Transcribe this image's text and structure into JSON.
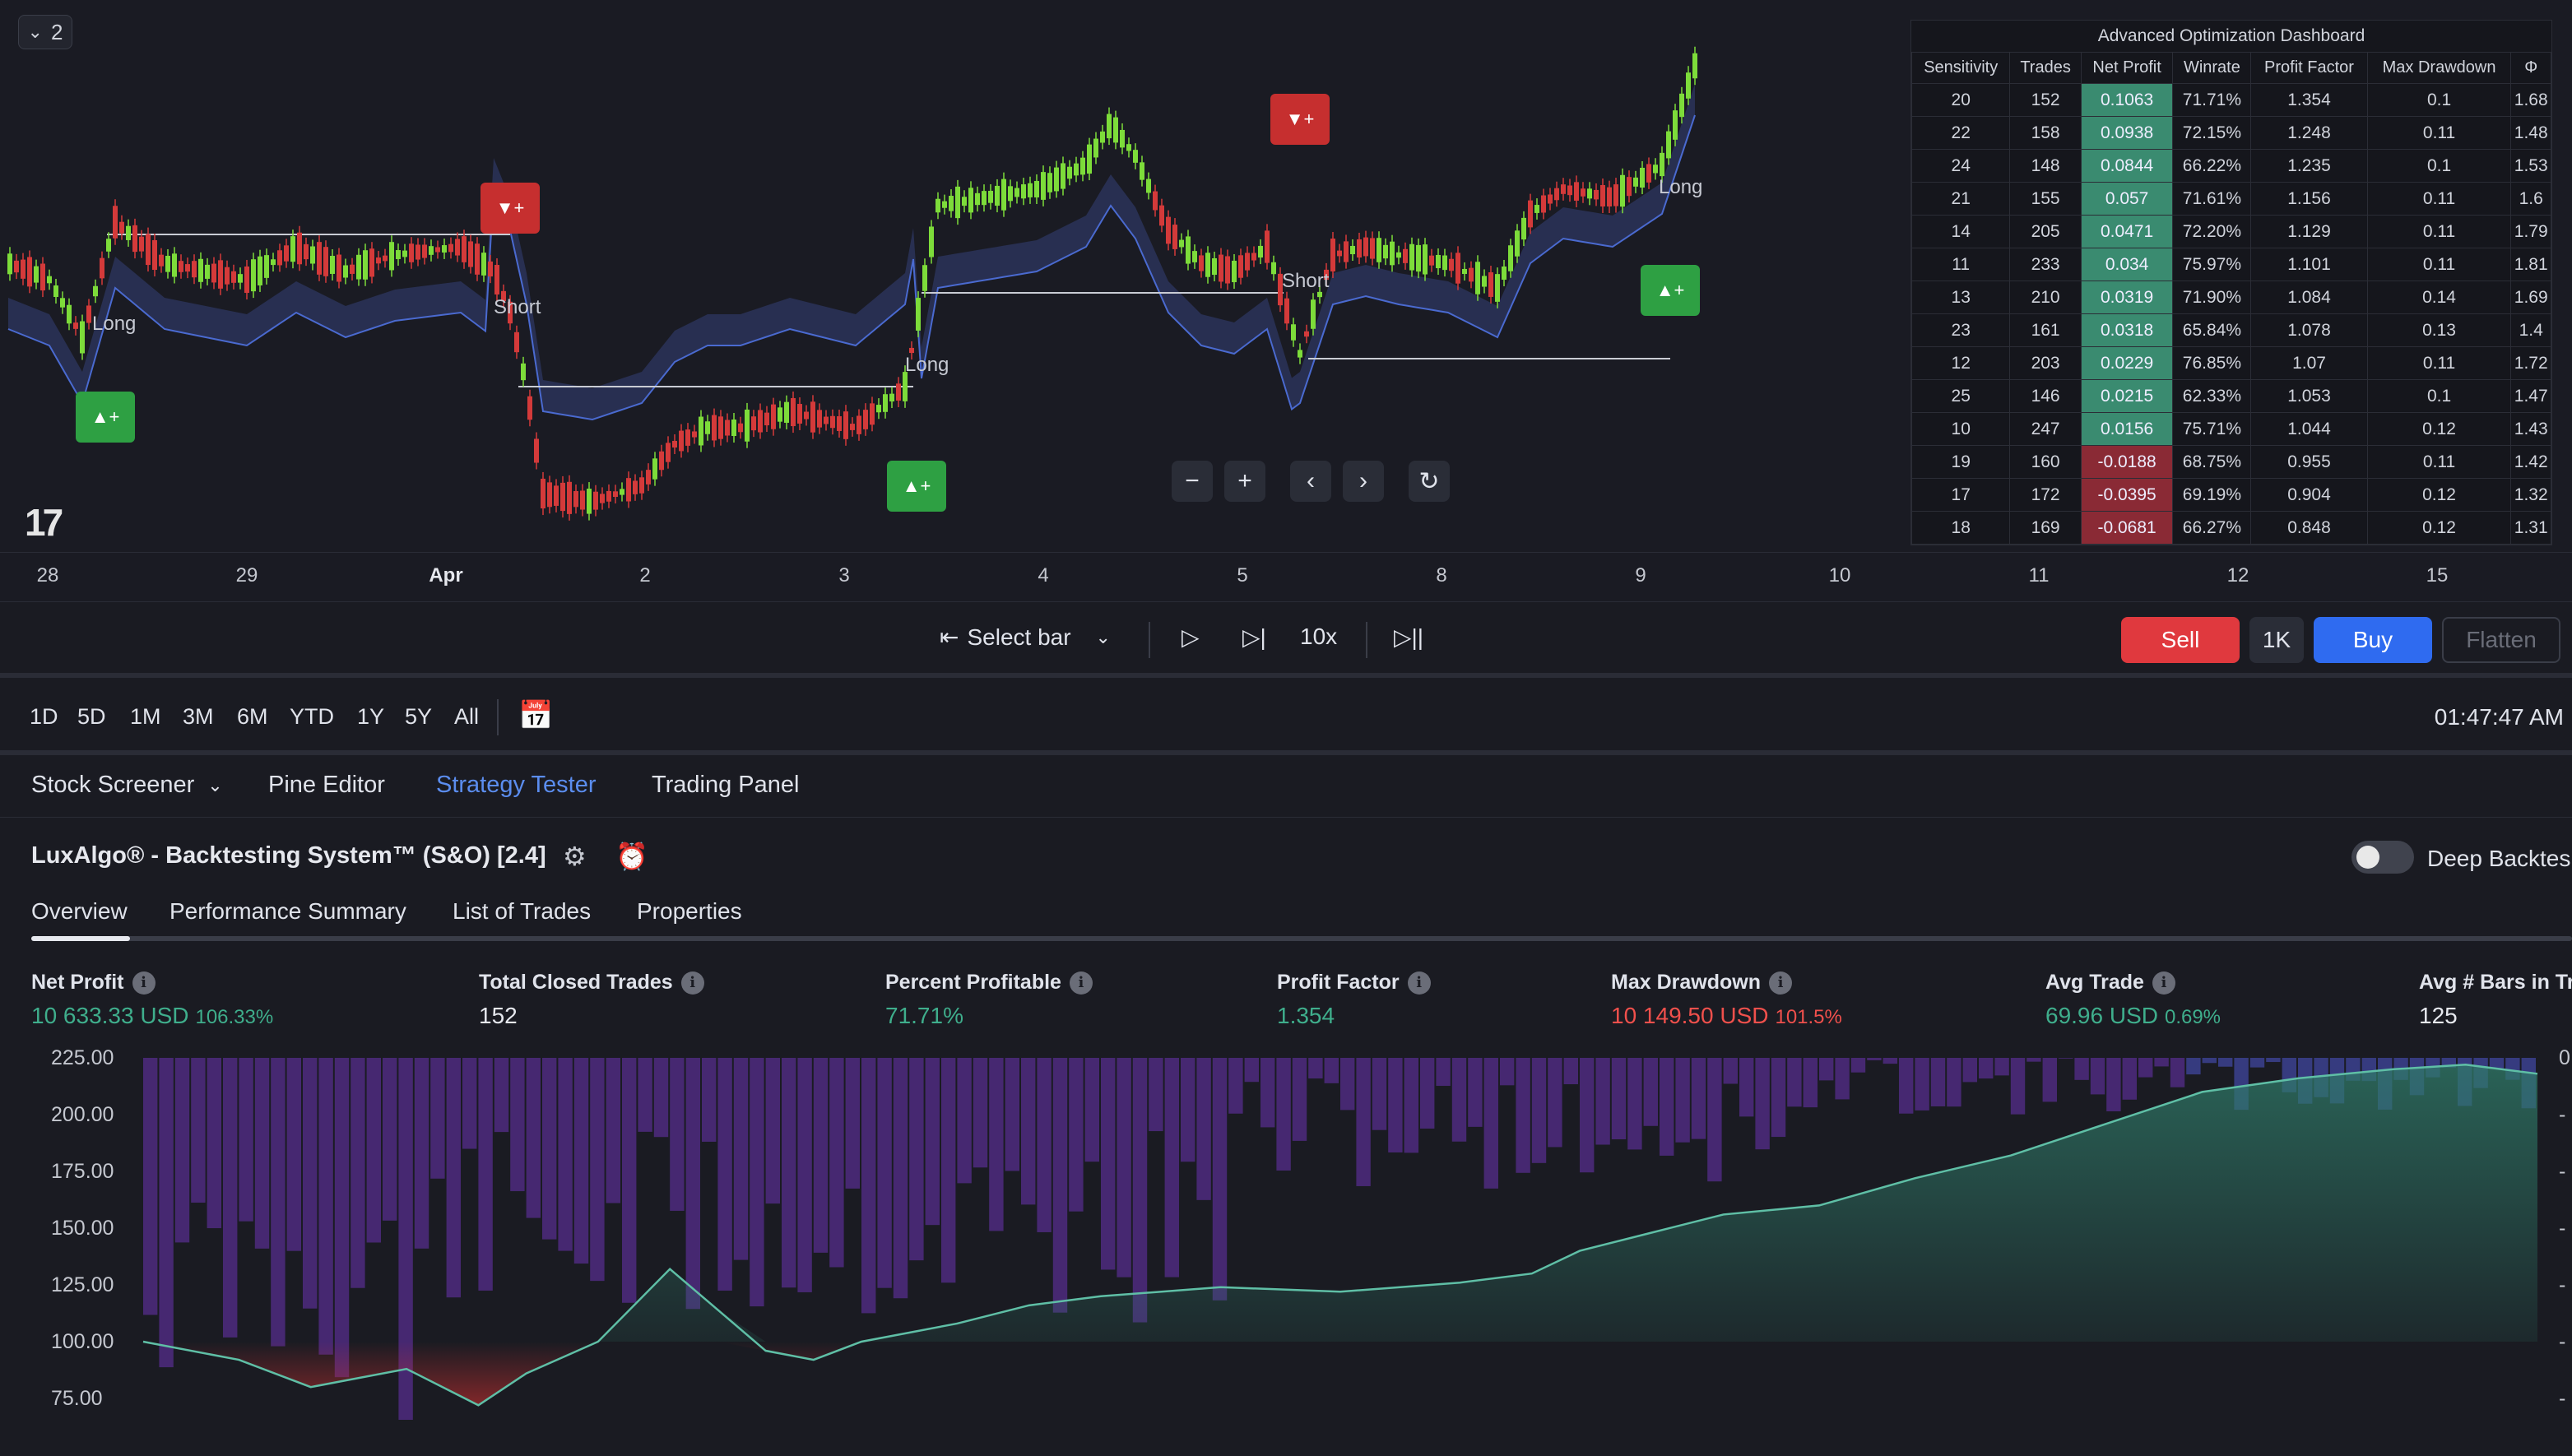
{
  "chart": {
    "collapse_count": "2",
    "logo": "17",
    "signals": [
      {
        "label": "Long"
      },
      {
        "label": "Short"
      },
      {
        "label": "Long"
      },
      {
        "label": "Short"
      },
      {
        "label": "Long"
      }
    ],
    "badges": {
      "up": "▲+",
      "down": "▼+"
    },
    "nav": {
      "zoom_out": "−",
      "zoom_in": "+",
      "prev": "‹",
      "next": "›",
      "reset": "↻"
    },
    "time_ticks": [
      "28",
      "29",
      "Apr",
      "2",
      "3",
      "4",
      "5",
      "8",
      "9",
      "10",
      "11",
      "12",
      "15"
    ]
  },
  "dashboard": {
    "title": "Advanced Optimization Dashboard",
    "columns": [
      "Sensitivity",
      "Trades",
      "Net Profit",
      "Winrate",
      "Profit Factor",
      "Max Drawdown",
      "Φ"
    ],
    "rows": [
      [
        "20",
        "152",
        "0.1063",
        "71.71%",
        "1.354",
        "0.1",
        "1.68"
      ],
      [
        "22",
        "158",
        "0.0938",
        "72.15%",
        "1.248",
        "0.11",
        "1.48"
      ],
      [
        "24",
        "148",
        "0.0844",
        "66.22%",
        "1.235",
        "0.1",
        "1.53"
      ],
      [
        "21",
        "155",
        "0.057",
        "71.61%",
        "1.156",
        "0.11",
        "1.6"
      ],
      [
        "14",
        "205",
        "0.0471",
        "72.20%",
        "1.129",
        "0.11",
        "1.79"
      ],
      [
        "11",
        "233",
        "0.034",
        "75.97%",
        "1.101",
        "0.11",
        "1.81"
      ],
      [
        "13",
        "210",
        "0.0319",
        "71.90%",
        "1.084",
        "0.14",
        "1.69"
      ],
      [
        "23",
        "161",
        "0.0318",
        "65.84%",
        "1.078",
        "0.13",
        "1.4"
      ],
      [
        "12",
        "203",
        "0.0229",
        "76.85%",
        "1.07",
        "0.11",
        "1.72"
      ],
      [
        "25",
        "146",
        "0.0215",
        "62.33%",
        "1.053",
        "0.1",
        "1.47"
      ],
      [
        "10",
        "247",
        "0.0156",
        "75.71%",
        "1.044",
        "0.12",
        "1.43"
      ],
      [
        "19",
        "160",
        "-0.0188",
        "68.75%",
        "0.955",
        "0.11",
        "1.42"
      ],
      [
        "17",
        "172",
        "-0.0395",
        "69.19%",
        "0.904",
        "0.12",
        "1.32"
      ],
      [
        "18",
        "169",
        "-0.0681",
        "66.27%",
        "0.848",
        "0.12",
        "1.31"
      ]
    ]
  },
  "replay": {
    "select_bar": "Select bar",
    "speed": "10x",
    "sell": "Sell",
    "qty": "1K",
    "buy": "Buy",
    "flatten": "Flatten"
  },
  "ranges": [
    "1D",
    "5D",
    "1M",
    "3M",
    "6M",
    "YTD",
    "1Y",
    "5Y",
    "All"
  ],
  "clock": "01:47:47 AM",
  "panel_tabs": [
    "Stock Screener",
    "Pine Editor",
    "Strategy Tester",
    "Trading Panel"
  ],
  "tester": {
    "strategy_name": "LuxAlgo® - Backtesting System™ (S&O) [2.4]",
    "deep_backtest_label": "Deep Backtes",
    "subtabs": [
      "Overview",
      "Performance Summary",
      "List of Trades",
      "Properties"
    ],
    "metrics": [
      {
        "label": "Net Profit",
        "value": "10 633.33 USD",
        "pct": "106.33%",
        "color": "green"
      },
      {
        "label": "Total Closed Trades",
        "value": "152",
        "pct": "",
        "color": "white"
      },
      {
        "label": "Percent Profitable",
        "value": "71.71%",
        "pct": "",
        "color": "green"
      },
      {
        "label": "Profit Factor",
        "value": "1.354",
        "pct": "",
        "color": "green"
      },
      {
        "label": "Max Drawdown",
        "value": "10 149.50 USD",
        "pct": "101.5%",
        "color": "red"
      },
      {
        "label": "Avg Trade",
        "value": "69.96 USD",
        "pct": "0.69%",
        "color": "green"
      },
      {
        "label": "Avg # Bars in Tra",
        "value": "125",
        "pct": "",
        "color": "white"
      }
    ],
    "y_labels": [
      "225.00",
      "200.00",
      "175.00",
      "150.00",
      "125.00",
      "100.00",
      "75.00"
    ],
    "right_labels": [
      "0",
      "-",
      "-",
      "-",
      "-",
      "-",
      "-"
    ]
  },
  "colors": {
    "up": "#2ea043",
    "down": "#c62f2f",
    "accent_blue": "#5b8def",
    "profit_green": "#3fae8c",
    "loss_red": "#f0504c",
    "buy_blue": "#2f6bf0",
    "sell_red": "#e0393e"
  }
}
